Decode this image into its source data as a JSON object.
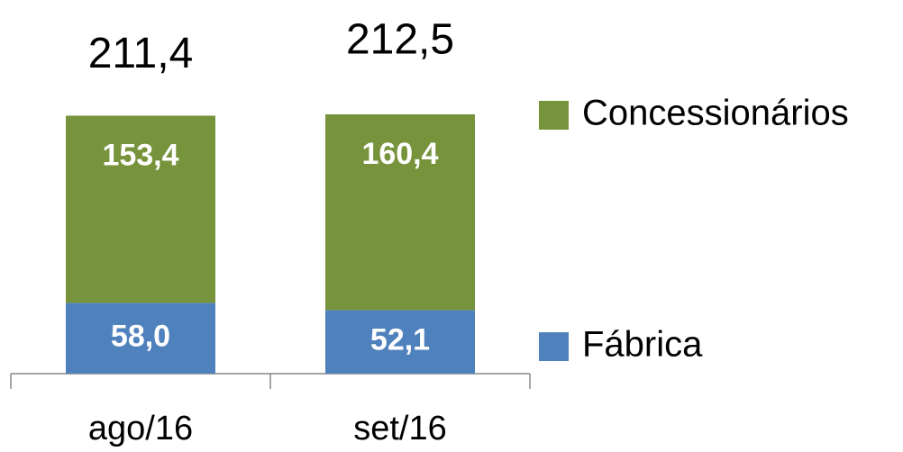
{
  "chart_data": {
    "type": "stacked_bar",
    "categories": [
      "ago/16",
      "set/16"
    ],
    "series": [
      {
        "name": "Fábrica",
        "color": "#4f81bd",
        "values": [
          58.0,
          52.1
        ],
        "value_labels": [
          "58,0",
          "52,1"
        ]
      },
      {
        "name": "Concessionários",
        "color": "#77933c",
        "values": [
          153.4,
          160.4
        ],
        "value_labels": [
          "153,4",
          "160,4"
        ]
      }
    ],
    "totals": {
      "values": [
        211.4,
        212.5
      ],
      "value_labels": [
        "211,4",
        "212,5"
      ]
    }
  }
}
